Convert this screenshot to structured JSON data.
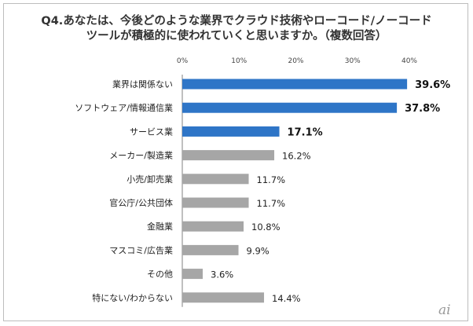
{
  "chart_data": {
    "type": "bar",
    "orientation": "horizontal",
    "title": "Q4.あなたは、今後どのような業界でクラウド技術やローコード/ノーコードツールが積極的に使われていくと思いますか。（複数回答）",
    "title_lines": [
      "Q4.あなたは、今後どのような業界でクラウド技術やローコード/ノーコード",
      "ツールが積極的に使われていくと思いますか。（複数回答）"
    ],
    "categories": [
      "業界は関係ない",
      "ソフトウェア/情報通信業",
      "サービス業",
      "メーカー/製造業",
      "小売/卸売業",
      "官公庁/公共団体",
      "金融業",
      "マスコミ/広告業",
      "その他",
      "特にない/わからない"
    ],
    "values": [
      39.6,
      37.8,
      17.1,
      16.2,
      11.7,
      11.7,
      10.8,
      9.9,
      3.6,
      14.4
    ],
    "value_labels": [
      "39.6%",
      "37.8%",
      "17.1%",
      "16.2%",
      "11.7%",
      "11.7%",
      "10.8%",
      "9.9%",
      "3.6%",
      "14.4%"
    ],
    "highlighted": [
      true,
      true,
      true,
      false,
      false,
      false,
      false,
      false,
      false,
      false
    ],
    "xlim": [
      0,
      40
    ],
    "ticks": [
      0,
      10,
      20,
      30,
      40
    ],
    "tick_labels": [
      "0%",
      "10%",
      "20%",
      "30%",
      "40%"
    ],
    "xlabel": "",
    "ylabel": "",
    "grid": false
  },
  "colors": {
    "highlight": "#2e75c7",
    "normal": "#a6a6a6",
    "axis": "#808080"
  },
  "logo": {
    "text": "ai",
    "icon": "cnet-logo-icon"
  }
}
